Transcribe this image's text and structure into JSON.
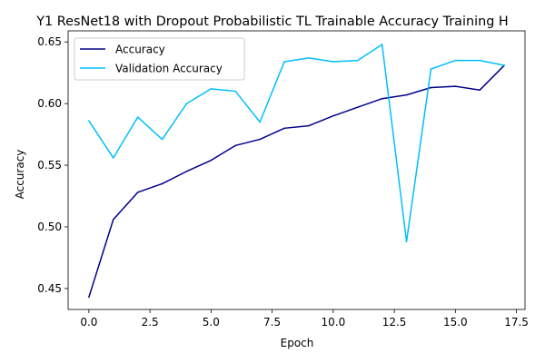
{
  "chart_data": {
    "type": "line",
    "title": "Y1 ResNet18 with Dropout Probabilistic TL Trainable Accuracy Training H",
    "xlabel": "Epoch",
    "ylabel": "Accuracy",
    "xlim": [
      -0.85,
      17.85
    ],
    "ylim": [
      0.433,
      0.659
    ],
    "xticks": [
      0.0,
      2.5,
      5.0,
      7.5,
      10.0,
      12.5,
      15.0,
      17.5
    ],
    "xtick_labels": [
      "0.0",
      "2.5",
      "5.0",
      "7.5",
      "10.0",
      "12.5",
      "15.0",
      "17.5"
    ],
    "yticks": [
      0.45,
      0.5,
      0.55,
      0.6,
      0.65
    ],
    "ytick_labels": [
      "0.45",
      "0.50",
      "0.55",
      "0.60",
      "0.65"
    ],
    "grid": false,
    "legend_position": "top-left",
    "x": [
      0,
      1,
      2,
      3,
      4,
      5,
      6,
      7,
      8,
      9,
      10,
      11,
      12,
      13,
      14,
      15,
      16,
      17
    ],
    "series": [
      {
        "name": "Accuracy",
        "color": "#00008b",
        "values": [
          0.443,
          0.506,
          0.528,
          0.535,
          0.545,
          0.554,
          0.566,
          0.571,
          0.58,
          0.582,
          0.59,
          0.597,
          0.604,
          0.607,
          0.613,
          0.614,
          0.611,
          0.631
        ]
      },
      {
        "name": "Validation Accuracy",
        "color": "#00bfff",
        "values": [
          0.586,
          0.556,
          0.589,
          0.571,
          0.6,
          0.612,
          0.61,
          0.585,
          0.634,
          0.637,
          0.634,
          0.635,
          0.648,
          0.488,
          0.628,
          0.635,
          0.635,
          0.631
        ]
      }
    ]
  }
}
